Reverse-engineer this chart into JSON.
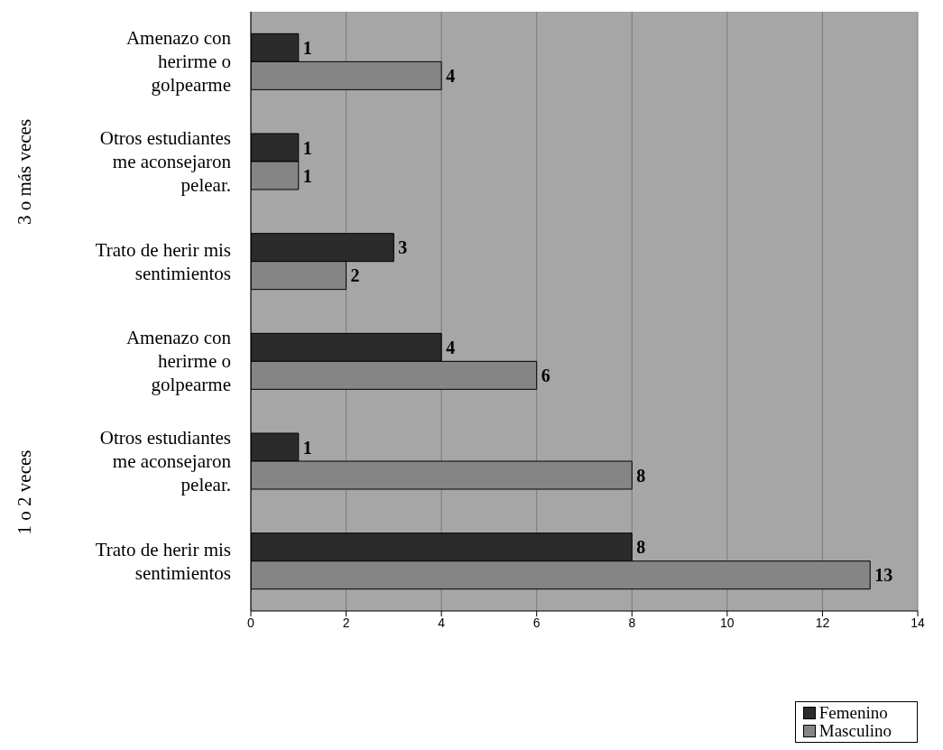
{
  "chart_data": {
    "type": "bar",
    "orientation": "horizontal",
    "categories": [
      "Amenazo con herirme o golpearme",
      "Otros estudiantes me aconsejaron pelear.",
      "Trato de herir mis sentimientos",
      "Amenazo con herirme o golpearme",
      "Otros estudiantes me aconsejaron pelear.",
      "Trato de herir mis sentimientos"
    ],
    "series": [
      {
        "name": "Femenino",
        "color": "#2b2b2b",
        "values": [
          1,
          1,
          3,
          4,
          1,
          8
        ]
      },
      {
        "name": "Masculino",
        "color": "#858585",
        "values": [
          4,
          1,
          2,
          6,
          8,
          13
        ]
      }
    ],
    "annotations": [
      "3 o más veces",
      "1 o 2 veces"
    ],
    "xlim": [
      0,
      14
    ],
    "xticks": [
      0,
      2,
      4,
      6,
      8,
      10,
      12,
      14
    ],
    "grid": "x",
    "legend": "bottom right",
    "data_labels": true
  }
}
